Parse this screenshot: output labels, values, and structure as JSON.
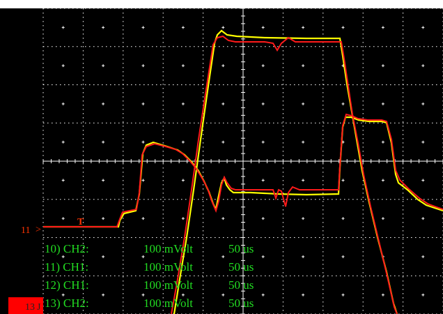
{
  "window": {
    "title": ""
  },
  "screen": {
    "background": "#000000",
    "grid_color": "#ffffff",
    "grid_style": "dotted",
    "divisions_x": 10,
    "divisions_y": 8
  },
  "traces": [
    {
      "name": "",
      "color": "#ffff00"
    },
    {
      "name": "",
      "color": "#ff1a1a"
    }
  ],
  "channel_settings": [
    {
      "label": "10) CH2:",
      "scale": "100 mVolt",
      "time": "50 us"
    },
    {
      "label": "11) CH1:",
      "scale": "100 mVolt",
      "time": "50 us"
    },
    {
      "label": "12) CH1:",
      "scale": "100 mVolt",
      "time": "50 us"
    },
    {
      "label": "13) CH2:",
      "scale": "100 mVolt",
      "time": "50 us"
    }
  ],
  "markers": {
    "ch11": {
      "text": "11",
      "color": "#ff3300"
    },
    "ch13": {
      "text": "13",
      "color": "#ff0000"
    },
    "trigger": {
      "text": "T",
      "color": "#ff3300"
    }
  },
  "colors": {
    "status_text": "#22dd22",
    "marker_red": "#ff0000"
  }
}
